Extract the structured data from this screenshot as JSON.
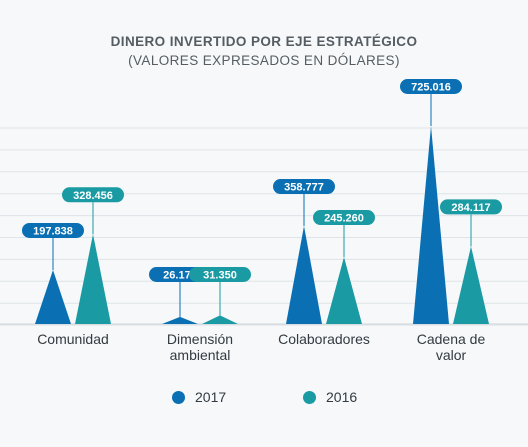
{
  "title": "DINERO INVERTIDO POR EJE ESTRATÉGICO",
  "subtitle": "(VALORES EXPRESADOS EN DÓLARES)",
  "colors": {
    "s2017": "#0a70b3",
    "s2016": "#1a9aa3",
    "grid": "#dfe4e8",
    "text": "#333a40"
  },
  "legend": [
    {
      "label": "2017",
      "color": "#0a70b3"
    },
    {
      "label": "2016",
      "color": "#1a9aa3"
    }
  ],
  "chart_data": {
    "type": "bar",
    "title": "DINERO INVERTIDO POR EJE ESTRATÉGICO",
    "subtitle": "(VALORES EXPRESADOS EN DÓLARES)",
    "categories": [
      [
        "Comunidad"
      ],
      [
        "Dimensión",
        "ambiental"
      ],
      [
        "Colaboradores"
      ],
      [
        "Cadena de",
        "valor"
      ]
    ],
    "series": [
      {
        "name": "2017",
        "values": [
          197838,
          26174,
          358777,
          725016
        ],
        "labels": [
          "197.838",
          "26.174",
          "358.777",
          "725.016"
        ]
      },
      {
        "name": "2016",
        "values": [
          328456,
          31350,
          245260,
          284117
        ],
        "labels": [
          "328.456",
          "31.350",
          "245.260",
          "284.117"
        ]
      }
    ],
    "ylim": [
      0,
      725016
    ],
    "grid": true,
    "legend_position": "bottom"
  }
}
